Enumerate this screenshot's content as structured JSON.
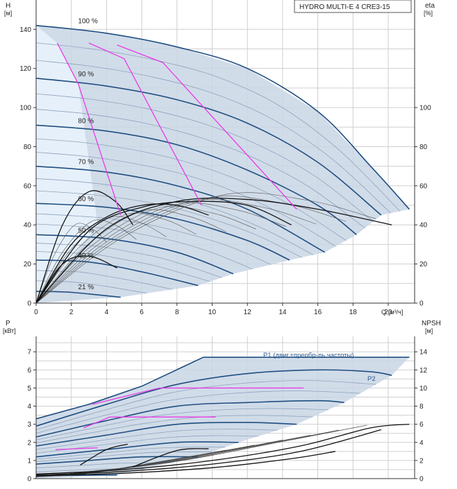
{
  "chart_data": [
    {
      "type": "line",
      "title": "HYDRO MULTI-E 4 CRE3-15",
      "ylabel": "H",
      "yunit": "[м]",
      "y2label": "eta",
      "y2unit": "[%]",
      "xlabel": "Q",
      "xunit": "[м³/ч]",
      "xlim": [
        0,
        21.5
      ],
      "ylim": [
        0,
        155
      ],
      "y2lim": [
        0,
        155
      ],
      "x_ticks": [
        "0",
        "2",
        "4",
        "6",
        "8",
        "10",
        "12",
        "14",
        "16",
        "18",
        "20"
      ],
      "y_ticks": [
        "0",
        "20",
        "40",
        "60",
        "80",
        "100",
        "120",
        "140"
      ],
      "y2_ticks": [
        "0",
        "20",
        "40",
        "60",
        "80",
        "100"
      ],
      "grid": true,
      "speed_labels": [
        {
          "label": "100 %",
          "q": 1.2,
          "h": 142
        },
        {
          "label": "90 %",
          "q": 1.2,
          "h": 115
        },
        {
          "label": "80 %",
          "q": 1.2,
          "h": 91
        },
        {
          "label": "70 %",
          "q": 1.2,
          "h": 70
        },
        {
          "label": "60 %",
          "q": 1.2,
          "h": 51
        },
        {
          "label": "50 %",
          "q": 1.2,
          "h": 35
        },
        {
          "label": "40 %",
          "q": 1.2,
          "h": 22
        },
        {
          "label": "21 %",
          "q": 1.2,
          "h": 6
        }
      ],
      "series": [
        {
          "speed": 100,
          "qmax": 21.2,
          "values": [
            [
              0,
              142
            ],
            [
              4,
              138
            ],
            [
              8,
              131
            ],
            [
              12,
              120
            ],
            [
              16,
              98
            ],
            [
              19,
              70
            ],
            [
              21.2,
              48
            ]
          ]
        },
        {
          "speed": 90,
          "qmax": 19.6,
          "values": [
            [
              0,
              115
            ],
            [
              4,
              111
            ],
            [
              8,
              104
            ],
            [
              12,
              92
            ],
            [
              16,
              72
            ],
            [
              19.6,
              45
            ]
          ]
        },
        {
          "speed": 80,
          "qmax": 18.2,
          "values": [
            [
              0,
              91
            ],
            [
              4,
              88
            ],
            [
              8,
              81
            ],
            [
              12,
              68
            ],
            [
              16,
              50
            ],
            [
              18.2,
              35
            ]
          ]
        },
        {
          "speed": 70,
          "qmax": 16.4,
          "values": [
            [
              0,
              70
            ],
            [
              4,
              67
            ],
            [
              8,
              60
            ],
            [
              12,
              48
            ],
            [
              16.4,
              26
            ]
          ]
        },
        {
          "speed": 60,
          "qmax": 14.4,
          "values": [
            [
              0,
              51
            ],
            [
              4,
              49
            ],
            [
              8,
              43
            ],
            [
              12,
              32
            ],
            [
              14.4,
              22
            ]
          ]
        },
        {
          "speed": 50,
          "qmax": 11.2,
          "values": [
            [
              0,
              35
            ],
            [
              4,
              33
            ],
            [
              8,
              26
            ],
            [
              11.2,
              15
            ]
          ]
        },
        {
          "speed": 40,
          "qmax": 9.2,
          "values": [
            [
              0,
              22
            ],
            [
              3,
              21
            ],
            [
              6,
              16
            ],
            [
              9.2,
              9
            ]
          ]
        },
        {
          "speed": 21,
          "qmax": 4.8,
          "values": [
            [
              0,
              6
            ],
            [
              2,
              5.5
            ],
            [
              4.8,
              3
            ]
          ]
        }
      ],
      "efficiency_curves": [
        {
          "values": [
            [
              0,
              0
            ],
            [
              2,
              30
            ],
            [
              4,
              44
            ],
            [
              6,
              50
            ],
            [
              8,
              50
            ],
            [
              9.8,
              45
            ]
          ]
        },
        {
          "values": [
            [
              0,
              0
            ],
            [
              3,
              37
            ],
            [
              6,
              49
            ],
            [
              9,
              52
            ],
            [
              12,
              50
            ],
            [
              14.5,
              40
            ]
          ]
        },
        {
          "values": [
            [
              0,
              0
            ],
            [
              4,
              38
            ],
            [
              8,
              52
            ],
            [
              12,
              53
            ],
            [
              16,
              48
            ],
            [
              20.2,
              40
            ]
          ]
        },
        {
          "values": [
            [
              0,
              0
            ],
            [
              1.5,
              40
            ],
            [
              3,
              57
            ],
            [
              4.5,
              52
            ],
            [
              5.5,
              40
            ]
          ]
        },
        {
          "values": [
            [
              0,
              0
            ],
            [
              1.5,
              20
            ],
            [
              3,
              24
            ],
            [
              4.6,
              18
            ]
          ]
        }
      ],
      "limit_lines": [
        {
          "values": [
            [
              1.2,
              133
            ],
            [
              2.4,
              112
            ],
            [
              4.8,
              45
            ]
          ]
        },
        {
          "values": [
            [
              3,
              133
            ],
            [
              5,
              125
            ],
            [
              9.4,
              50
            ]
          ]
        },
        {
          "values": [
            [
              4.6,
              132
            ],
            [
              7.2,
              123
            ],
            [
              14.8,
              48
            ]
          ]
        }
      ]
    },
    {
      "type": "line",
      "ylabel": "P",
      "yunit": "[кВт]",
      "y2label": "NPSH",
      "y2unit": "[м]",
      "xlim": [
        0,
        21.5
      ],
      "ylim": [
        0,
        7.85
      ],
      "y2lim": [
        0,
        15.7
      ],
      "y_ticks": [
        "0",
        "1",
        "2",
        "3",
        "4",
        "5",
        "6",
        "7"
      ],
      "y2_ticks": [
        "0",
        "2",
        "4",
        "6",
        "8",
        "10",
        "12",
        "14"
      ],
      "grid": true,
      "series_labels": {
        "p1": "P1 (двиг.+преобр-ль частоты)",
        "p2": "P2"
      },
      "series": [
        {
          "name": "P1 (двиг.+преобр-ль частоты)",
          "values": [
            [
              0,
              3.3
            ],
            [
              3,
              4.1
            ],
            [
              6,
              5.1
            ],
            [
              9.5,
              6.7
            ],
            [
              21.2,
              6.7
            ]
          ]
        },
        {
          "name": "P2",
          "values": [
            [
              0,
              2.9
            ],
            [
              4,
              4.1
            ],
            [
              8,
              5.2
            ],
            [
              12,
              5.8
            ],
            [
              16,
              6.0
            ],
            [
              19,
              5.9
            ],
            [
              20.2,
              5.7
            ]
          ]
        },
        {
          "values": [
            [
              0,
              2.3
            ],
            [
              4,
              3.2
            ],
            [
              8,
              4.0
            ],
            [
              12,
              4.2
            ],
            [
              16,
              4.3
            ],
            [
              17.5,
              4.2
            ]
          ]
        },
        {
          "values": [
            [
              0,
              1.8
            ],
            [
              4,
              2.4
            ],
            [
              8,
              3.0
            ],
            [
              12,
              3.1
            ],
            [
              14.8,
              3.0
            ]
          ]
        },
        {
          "values": [
            [
              0,
              1.2
            ],
            [
              4,
              1.6
            ],
            [
              8,
              2.0
            ],
            [
              11.5,
              2.0
            ]
          ]
        },
        {
          "values": [
            [
              0,
              0.8
            ],
            [
              3,
              1.0
            ],
            [
              6,
              1.2
            ],
            [
              9.2,
              1.2
            ]
          ]
        },
        {
          "values": [
            [
              0,
              0.15
            ],
            [
              2,
              0.18
            ],
            [
              4.6,
              0.2
            ]
          ]
        }
      ],
      "npsh_curves": [
        {
          "values": [
            [
              0,
              0.5
            ],
            [
              5,
              1.0
            ],
            [
              10,
              2.0
            ],
            [
              15,
              3.6
            ],
            [
              19,
              5.6
            ],
            [
              21.2,
              6.0
            ]
          ]
        },
        {
          "values": [
            [
              0,
              0.4
            ],
            [
              5,
              0.8
            ],
            [
              10,
              1.6
            ],
            [
              15,
              3.0
            ],
            [
              19.6,
              5.4
            ]
          ]
        },
        {
          "values": [
            [
              0,
              0.3
            ],
            [
              5,
              0.6
            ],
            [
              10,
              1.2
            ],
            [
              14.5,
              2.2
            ],
            [
              17,
              3.0
            ]
          ]
        },
        {
          "values": [
            [
              2.5,
              1.5
            ],
            [
              4,
              3.2
            ],
            [
              5.2,
              3.8
            ]
          ]
        },
        {
          "values": [
            [
              5.5,
              1.3
            ],
            [
              8,
              3.1
            ],
            [
              9.8,
              3.3
            ]
          ]
        }
      ],
      "limit_lines": [
        {
          "values": [
            [
              1.1,
              1.6
            ],
            [
              3.5,
              1.7
            ]
          ]
        },
        {
          "values": [
            [
              2.7,
              2.8
            ],
            [
              4.2,
              3.4
            ],
            [
              10.2,
              3.4
            ]
          ]
        },
        {
          "values": [
            [
              3.2,
              4.1
            ],
            [
              7,
              5.0
            ],
            [
              15.2,
              5.0
            ]
          ]
        }
      ]
    }
  ]
}
